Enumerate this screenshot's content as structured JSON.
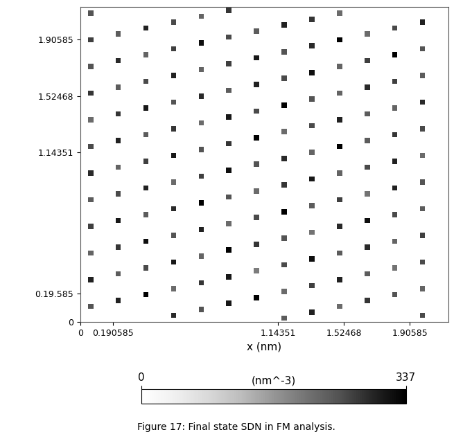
{
  "chart_data": {
    "type": "scatter",
    "xlabel": "x (nm)",
    "caption": "Figure 17: Final state SDN in FM analysis.",
    "xlim": [
      0,
      2.13
    ],
    "ylim": [
      0,
      2.13
    ],
    "xticks": [
      0,
      0.190585,
      1.14351,
      1.52468,
      1.90585
    ],
    "yticks": [
      0,
      {
        "value": 0.190585,
        "label": "0.19.585"
      },
      1.14351,
      1.52468,
      1.90585
    ],
    "grid": false,
    "marker": "s",
    "colorbar": {
      "range": [
        0,
        337
      ],
      "ticks": [
        0,
        337
      ],
      "label": "(nm^-3)"
    },
    "dots": [
      [
        1.98,
        0.045,
        260
      ],
      [
        1.18,
        0.025,
        240
      ],
      [
        1.34,
        0.065,
        300
      ],
      [
        1.5,
        0.105,
        220
      ],
      [
        1.66,
        0.145,
        280
      ],
      [
        1.82,
        0.185,
        250
      ],
      [
        1.98,
        0.225,
        230
      ],
      [
        0.54,
        0.045,
        290
      ],
      [
        0.7,
        0.085,
        250
      ],
      [
        0.86,
        0.125,
        310
      ],
      [
        1.02,
        0.165,
        337
      ],
      [
        1.18,
        0.205,
        220
      ],
      [
        1.34,
        0.245,
        270
      ],
      [
        1.5,
        0.285,
        300
      ],
      [
        1.66,
        0.325,
        240
      ],
      [
        1.82,
        0.365,
        210
      ],
      [
        1.98,
        0.405,
        260
      ],
      [
        0.06,
        0.105,
        250
      ],
      [
        0.22,
        0.145,
        300
      ],
      [
        0.38,
        0.185,
        337
      ],
      [
        0.54,
        0.225,
        220
      ],
      [
        0.7,
        0.265,
        280
      ],
      [
        0.86,
        0.305,
        310
      ],
      [
        1.02,
        0.345,
        200
      ],
      [
        1.18,
        0.385,
        260
      ],
      [
        1.34,
        0.425,
        320
      ],
      [
        1.5,
        0.465,
        240
      ],
      [
        1.66,
        0.505,
        290
      ],
      [
        1.82,
        0.545,
        230
      ],
      [
        1.98,
        0.585,
        270
      ],
      [
        0.06,
        0.285,
        300
      ],
      [
        0.22,
        0.325,
        240
      ],
      [
        0.38,
        0.365,
        260
      ],
      [
        0.54,
        0.405,
        310
      ],
      [
        0.7,
        0.445,
        230
      ],
      [
        0.86,
        0.485,
        337
      ],
      [
        1.02,
        0.525,
        280
      ],
      [
        1.18,
        0.565,
        250
      ],
      [
        1.34,
        0.605,
        210
      ],
      [
        1.5,
        0.645,
        290
      ],
      [
        1.66,
        0.685,
        320
      ],
      [
        1.82,
        0.725,
        260
      ],
      [
        1.98,
        0.765,
        240
      ],
      [
        0.06,
        0.465,
        230
      ],
      [
        0.22,
        0.505,
        280
      ],
      [
        0.38,
        0.545,
        320
      ],
      [
        0.54,
        0.585,
        250
      ],
      [
        0.7,
        0.625,
        300
      ],
      [
        0.86,
        0.665,
        220
      ],
      [
        1.02,
        0.705,
        260
      ],
      [
        1.18,
        0.745,
        337
      ],
      [
        1.34,
        0.785,
        240
      ],
      [
        1.5,
        0.825,
        270
      ],
      [
        1.66,
        0.865,
        210
      ],
      [
        1.82,
        0.905,
        300
      ],
      [
        1.98,
        0.945,
        250
      ],
      [
        0.06,
        0.645,
        270
      ],
      [
        0.22,
        0.685,
        310
      ],
      [
        0.38,
        0.725,
        240
      ],
      [
        0.54,
        0.765,
        290
      ],
      [
        0.7,
        0.805,
        337
      ],
      [
        0.86,
        0.845,
        250
      ],
      [
        1.02,
        0.885,
        220
      ],
      [
        1.18,
        0.925,
        280
      ],
      [
        1.34,
        0.965,
        310
      ],
      [
        1.5,
        1.005,
        230
      ],
      [
        1.66,
        1.045,
        260
      ],
      [
        1.82,
        1.085,
        300
      ],
      [
        1.98,
        1.125,
        220
      ],
      [
        0.06,
        0.825,
        240
      ],
      [
        0.22,
        0.865,
        260
      ],
      [
        0.38,
        0.905,
        300
      ],
      [
        0.54,
        0.945,
        220
      ],
      [
        0.7,
        0.985,
        270
      ],
      [
        0.86,
        1.025,
        320
      ],
      [
        1.02,
        1.065,
        250
      ],
      [
        1.18,
        1.105,
        290
      ],
      [
        1.34,
        1.145,
        230
      ],
      [
        1.5,
        1.185,
        337
      ],
      [
        1.66,
        1.225,
        240
      ],
      [
        1.82,
        1.265,
        280
      ],
      [
        1.98,
        1.305,
        260
      ],
      [
        0.06,
        1.005,
        290
      ],
      [
        0.22,
        1.045,
        230
      ],
      [
        0.38,
        1.085,
        270
      ],
      [
        0.54,
        1.125,
        310
      ],
      [
        0.7,
        1.165,
        250
      ],
      [
        0.86,
        1.205,
        280
      ],
      [
        1.02,
        1.245,
        337
      ],
      [
        1.18,
        1.285,
        220
      ],
      [
        1.34,
        1.325,
        260
      ],
      [
        1.5,
        1.365,
        300
      ],
      [
        1.66,
        1.405,
        240
      ],
      [
        1.82,
        1.445,
        230
      ],
      [
        1.98,
        1.485,
        290
      ],
      [
        0.06,
        1.185,
        260
      ],
      [
        0.22,
        1.225,
        300
      ],
      [
        0.38,
        1.265,
        240
      ],
      [
        0.54,
        1.305,
        280
      ],
      [
        0.7,
        1.345,
        220
      ],
      [
        0.86,
        1.385,
        310
      ],
      [
        1.02,
        1.425,
        260
      ],
      [
        1.18,
        1.465,
        337
      ],
      [
        1.34,
        1.505,
        250
      ],
      [
        1.5,
        1.545,
        230
      ],
      [
        1.66,
        1.585,
        290
      ],
      [
        1.82,
        1.625,
        270
      ],
      [
        1.98,
        1.665,
        240
      ],
      [
        0.06,
        1.365,
        220
      ],
      [
        0.22,
        1.405,
        280
      ],
      [
        0.38,
        1.445,
        310
      ],
      [
        0.54,
        1.485,
        250
      ],
      [
        0.7,
        1.525,
        290
      ],
      [
        0.86,
        1.565,
        240
      ],
      [
        1.02,
        1.605,
        300
      ],
      [
        1.18,
        1.645,
        260
      ],
      [
        1.34,
        1.685,
        320
      ],
      [
        1.5,
        1.725,
        230
      ],
      [
        1.66,
        1.765,
        270
      ],
      [
        1.82,
        1.805,
        337
      ],
      [
        1.98,
        1.845,
        250
      ],
      [
        0.06,
        1.545,
        280
      ],
      [
        0.22,
        1.585,
        240
      ],
      [
        0.38,
        1.625,
        260
      ],
      [
        0.54,
        1.665,
        300
      ],
      [
        0.7,
        1.705,
        230
      ],
      [
        0.86,
        1.745,
        270
      ],
      [
        1.02,
        1.785,
        310
      ],
      [
        1.18,
        1.825,
        250
      ],
      [
        1.34,
        1.865,
        290
      ],
      [
        1.5,
        1.905,
        337
      ],
      [
        1.66,
        1.945,
        220
      ],
      [
        1.82,
        1.985,
        260
      ],
      [
        1.98,
        2.025,
        300
      ],
      [
        0.06,
        1.725,
        250
      ],
      [
        0.22,
        1.765,
        290
      ],
      [
        0.38,
        1.805,
        230
      ],
      [
        0.54,
        1.845,
        270
      ],
      [
        0.7,
        1.885,
        320
      ],
      [
        0.86,
        1.925,
        260
      ],
      [
        1.02,
        1.965,
        240
      ],
      [
        1.18,
        2.005,
        300
      ],
      [
        1.34,
        2.045,
        280
      ],
      [
        1.5,
        2.085,
        220
      ],
      [
        0.06,
        1.905,
        270
      ],
      [
        0.22,
        1.945,
        240
      ],
      [
        0.38,
        1.985,
        300
      ],
      [
        0.54,
        2.025,
        260
      ],
      [
        0.7,
        2.065,
        230
      ],
      [
        0.86,
        2.105,
        280
      ],
      [
        0.06,
        2.085,
        250
      ]
    ]
  }
}
